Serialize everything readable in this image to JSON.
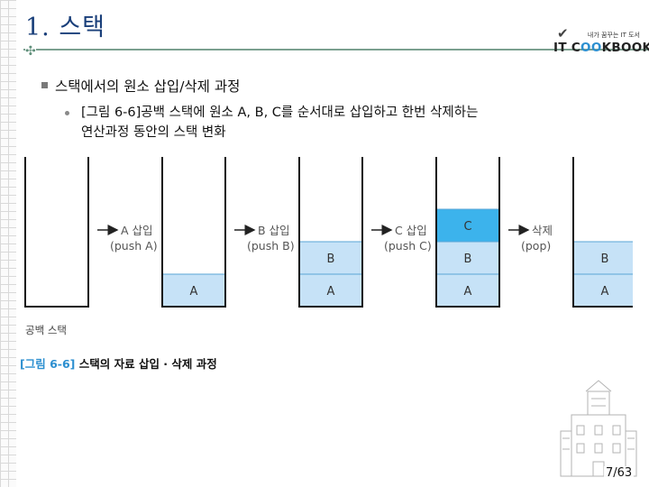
{
  "slide": {
    "title": "1. 스택",
    "bullet_main": "스택에서의 원소 삽입/삭제 과정",
    "bullet_sub_line1": "[그림 6-6]공백 스택에 원소 A, B, C를 순서대로 삽입하고 한번 삭제하는",
    "bullet_sub_line2": "연산과정 동안의 스택 변화",
    "page_number": "7/63"
  },
  "logo": {
    "tagline": "내가 꿈꾸는 IT 도서",
    "brand_prefix": "IT C",
    "brand_oo": "OO",
    "brand_suffix": "KBOOK"
  },
  "figure": {
    "caption_number": "[그림 6-6]",
    "caption_text": "스택의 자료 삽입 · 삭제 과정",
    "empty_stack_label": "공백 스택",
    "stacks": [
      {
        "cells": []
      },
      {
        "cells": [
          "A"
        ]
      },
      {
        "cells": [
          "A",
          "B"
        ]
      },
      {
        "cells": [
          "A",
          "B",
          "C"
        ]
      },
      {
        "cells": [
          "A",
          "B"
        ]
      }
    ],
    "operations": [
      {
        "name": "A 삽입",
        "detail": "(push A)"
      },
      {
        "name": "B 삽입",
        "detail": "(push B)"
      },
      {
        "name": "C 삽입",
        "detail": "(push C)"
      },
      {
        "name": "삭제",
        "detail": "(pop)"
      }
    ],
    "colors": {
      "cell_fill": "#c6e2f7",
      "top_cell_fill": "#3cb3ec",
      "cell_border": "#5aa6d6",
      "wall": "#111111",
      "arrow": "#222222",
      "caption_number": "#2c8fd0"
    }
  }
}
